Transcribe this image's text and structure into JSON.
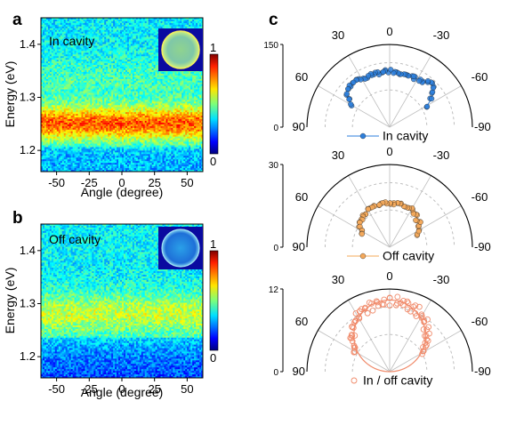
{
  "figure": {
    "panel_labels": [
      "a",
      "b",
      "c"
    ]
  },
  "chart_data": [
    {
      "id": "a",
      "type": "heatmap",
      "annotation": "In cavity",
      "xlabel": "Angle (degree)",
      "ylabel": "Energy (eV)",
      "xlim": [
        -62,
        62
      ],
      "ylim": [
        1.16,
        1.45
      ],
      "xticks": [
        -50,
        -25,
        0,
        25,
        50
      ],
      "xtick_labels": [
        "-50",
        "-25",
        "0",
        "25",
        "50"
      ],
      "yticks": [
        1.2,
        1.3,
        1.4
      ],
      "ytick_labels": [
        "1.2",
        "1.3",
        "1.4"
      ],
      "peak_energy": 1.25,
      "colorbar": {
        "min": 0,
        "max": 1,
        "labels": [
          "0",
          "1"
        ],
        "colormap": "jet"
      },
      "inset": "back-focal-plane image (bright disk)"
    },
    {
      "id": "b",
      "type": "heatmap",
      "annotation": "Off cavity",
      "xlabel": "Angle (degree)",
      "ylabel": "Energy (eV)",
      "xlim": [
        -62,
        62
      ],
      "ylim": [
        1.16,
        1.45
      ],
      "xticks": [
        -50,
        -25,
        0,
        25,
        50
      ],
      "xtick_labels": [
        "-50",
        "-25",
        "0",
        "25",
        "50"
      ],
      "yticks": [
        1.2,
        1.3,
        1.4
      ],
      "ytick_labels": [
        "1.2",
        "1.3",
        "1.4"
      ],
      "peak_energy": 1.27,
      "colorbar": {
        "min": 0,
        "max": 1,
        "labels": [
          "0",
          "1"
        ],
        "colormap": "jet"
      },
      "inset": "back-focal-plane image (dim disk)"
    },
    {
      "id": "c1",
      "type": "scatter",
      "subtype": "polar",
      "legend": "In cavity",
      "color": "#2d7fdc",
      "rmax": 150,
      "r_labels": [
        "150",
        "0"
      ],
      "angle_labels": [
        "30",
        "0",
        "-30",
        "60",
        "-60",
        "90",
        "-90"
      ],
      "angles_deg": [
        -60,
        -56,
        -52,
        -48,
        -44,
        -40,
        -36,
        -32,
        -28,
        -24,
        -20,
        -16,
        -12,
        -8,
        -4,
        0,
        4,
        8,
        12,
        16,
        20,
        24,
        28,
        32,
        36,
        40,
        44,
        48,
        52,
        56,
        60
      ],
      "values": [
        78,
        92,
        100,
        106,
        108,
        106,
        103,
        101,
        100,
        100,
        100,
        100,
        100,
        100,
        101,
        102,
        102,
        101,
        100,
        100,
        100,
        100,
        101,
        102,
        103,
        104,
        104,
        103,
        100,
        90,
        80
      ]
    },
    {
      "id": "c2",
      "type": "scatter",
      "subtype": "polar",
      "legend": "Off cavity",
      "color": "#f5a95a",
      "rmax": 30,
      "r_labels": [
        "30",
        "0"
      ],
      "angle_labels": [
        "30",
        "0",
        "-30",
        "60",
        "-60",
        "90",
        "-90"
      ],
      "angles_deg": [
        -65,
        -60,
        -55,
        -50,
        -45,
        -40,
        -35,
        -30,
        -25,
        -20,
        -15,
        -10,
        -5,
        0,
        5,
        10,
        15,
        20,
        25,
        30,
        35,
        40,
        45,
        50,
        55,
        60,
        65
      ],
      "values": [
        11,
        12,
        13,
        14,
        14,
        15,
        15,
        16,
        16,
        16,
        16,
        16,
        16,
        16,
        16,
        16,
        16,
        16,
        16,
        16,
        15,
        15,
        14,
        14,
        13,
        12,
        11
      ]
    },
    {
      "id": "c3",
      "type": "scatter",
      "subtype": "polar",
      "legend": "In / off cavity",
      "color": "#f08a6a",
      "rmax": 12,
      "r_labels": [
        "12",
        "0"
      ],
      "angle_labels": [
        "30",
        "0",
        "-30",
        "60",
        "-60",
        "90",
        "-90"
      ],
      "angles_deg": [
        -60,
        -55,
        -50,
        -45,
        -40,
        -35,
        -30,
        -25,
        -20,
        -15,
        -10,
        -5,
        0,
        5,
        10,
        15,
        20,
        25,
        30,
        35,
        40,
        45,
        50,
        55,
        60
      ],
      "values": [
        5.5,
        6.3,
        7.2,
        7.8,
        8.4,
        8.9,
        9.3,
        9.6,
        9.8,
        10.0,
        10.2,
        10.3,
        10.4,
        10.3,
        10.2,
        10.0,
        9.8,
        9.6,
        9.3,
        8.9,
        8.4,
        7.8,
        7.2,
        6.3,
        5.5
      ],
      "fit": {
        "type": "cosine",
        "amplitude": 10.4
      }
    }
  ]
}
